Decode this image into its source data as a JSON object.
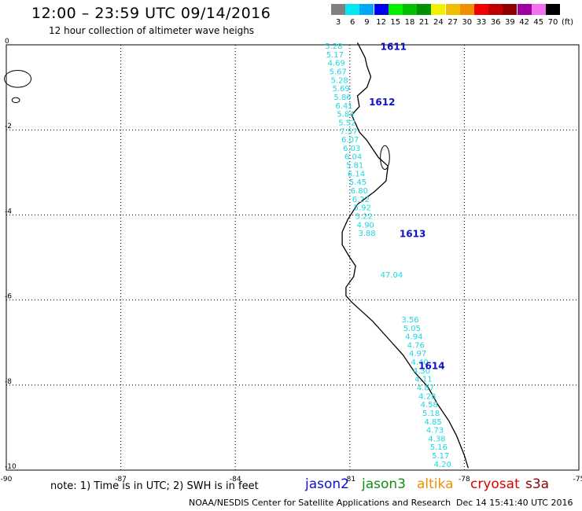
{
  "header": {
    "title": "12:00 – 23:59 UTC 09/14/2016",
    "subtitle": "12 hour collection of altimeter wave heighs"
  },
  "legend": {
    "unit": "(ft)",
    "bins": [
      {
        "label": "3",
        "color": "#808080"
      },
      {
        "label": "6",
        "color": "#00e8f0"
      },
      {
        "label": "9",
        "color": "#00a8f8"
      },
      {
        "label": "12",
        "color": "#0000f0"
      },
      {
        "label": "15",
        "color": "#00f000"
      },
      {
        "label": "18",
        "color": "#00c000"
      },
      {
        "label": "21",
        "color": "#009000"
      },
      {
        "label": "24",
        "color": "#f0f000"
      },
      {
        "label": "27",
        "color": "#f0c000"
      },
      {
        "label": "30",
        "color": "#f09000"
      },
      {
        "label": "33",
        "color": "#f00000"
      },
      {
        "label": "36",
        "color": "#c00000"
      },
      {
        "label": "39",
        "color": "#900000"
      },
      {
        "label": "42",
        "color": "#a000a0"
      },
      {
        "label": "45",
        "color": "#f070f0"
      },
      {
        "label": "70",
        "color": "#000000"
      }
    ]
  },
  "map": {
    "lon_range": [
      -90,
      -75
    ],
    "lat_range": [
      -10,
      0
    ],
    "x_ticks": [
      {
        "value": -90,
        "label": "-90"
      },
      {
        "value": -87,
        "label": "-87"
      },
      {
        "value": -84,
        "label": "-84"
      },
      {
        "value": -81,
        "label": "-81"
      },
      {
        "value": -78,
        "label": "-78"
      },
      {
        "value": -75,
        "label": "-75"
      }
    ],
    "y_ticks": [
      {
        "value": 0,
        "label": "0"
      },
      {
        "value": -2,
        "label": "-2"
      },
      {
        "value": -4,
        "label": "-4"
      },
      {
        "value": -6,
        "label": "-6"
      },
      {
        "value": -8,
        "label": "-8"
      },
      {
        "value": -10,
        "label": "-10"
      }
    ],
    "grid": true,
    "coastline": [
      [
        -80.8,
        0.05
      ],
      [
        -80.6,
        -0.3
      ],
      [
        -80.55,
        -0.5
      ],
      [
        -80.45,
        -0.75
      ],
      [
        -80.55,
        -1.0
      ],
      [
        -80.8,
        -1.2
      ],
      [
        -80.75,
        -1.45
      ],
      [
        -80.95,
        -1.65
      ],
      [
        -80.75,
        -2.05
      ],
      [
        -80.55,
        -2.25
      ],
      [
        -80.25,
        -2.65
      ],
      [
        -80.0,
        -2.85
      ],
      [
        -80.05,
        -3.2
      ],
      [
        -80.35,
        -3.45
      ],
      [
        -80.8,
        -3.75
      ],
      [
        -81.05,
        -4.1
      ],
      [
        -81.2,
        -4.4
      ],
      [
        -81.2,
        -4.7
      ],
      [
        -81.0,
        -5.0
      ],
      [
        -80.85,
        -5.2
      ],
      [
        -80.9,
        -5.45
      ],
      [
        -81.1,
        -5.7
      ],
      [
        -81.1,
        -5.9
      ],
      [
        -80.95,
        -6.05
      ],
      [
        -80.4,
        -6.5
      ],
      [
        -79.95,
        -6.95
      ],
      [
        -79.6,
        -7.3
      ],
      [
        -79.3,
        -7.7
      ],
      [
        -78.95,
        -8.05
      ],
      [
        -78.7,
        -8.45
      ],
      [
        -78.4,
        -8.85
      ],
      [
        -78.2,
        -9.2
      ],
      [
        -78.0,
        -9.65
      ],
      [
        -77.9,
        -9.95
      ]
    ],
    "islands": [
      {
        "center": [
          -89.7,
          -0.8
        ],
        "rx": 0.35,
        "ry": 0.2
      },
      {
        "center": [
          -89.75,
          -1.3
        ],
        "rx": 0.1,
        "ry": 0.06
      },
      {
        "center": [
          -80.08,
          -2.65
        ],
        "rx": 0.12,
        "ry": 0.28
      }
    ]
  },
  "passes": [
    {
      "label": "1611",
      "lon": -80.2,
      "lat": -0.05
    },
    {
      "label": "1612",
      "lon": -80.5,
      "lat": -1.35
    },
    {
      "label": "1613",
      "lon": -79.7,
      "lat": -4.45
    },
    {
      "label": "1614",
      "lon": -79.2,
      "lat": -7.55
    }
  ],
  "wave_heights": [
    {
      "lon": -81.65,
      "lat": -0.02,
      "value": "5.28"
    },
    {
      "lon": -81.62,
      "lat": -0.22,
      "value": "5.17"
    },
    {
      "lon": -81.58,
      "lat": -0.42,
      "value": "4.69"
    },
    {
      "lon": -81.54,
      "lat": -0.62,
      "value": "5.67"
    },
    {
      "lon": -81.5,
      "lat": -0.82,
      "value": "5.28"
    },
    {
      "lon": -81.46,
      "lat": -1.02,
      "value": "5.69"
    },
    {
      "lon": -81.42,
      "lat": -1.22,
      "value": "5.86"
    },
    {
      "lon": -81.38,
      "lat": -1.42,
      "value": "6.41"
    },
    {
      "lon": -81.34,
      "lat": -1.62,
      "value": "5.84"
    },
    {
      "lon": -81.3,
      "lat": -1.82,
      "value": "5.52"
    },
    {
      "lon": -81.26,
      "lat": -2.02,
      "value": "7.57"
    },
    {
      "lon": -81.22,
      "lat": -2.22,
      "value": "6.07"
    },
    {
      "lon": -81.18,
      "lat": -2.42,
      "value": "6.03"
    },
    {
      "lon": -81.14,
      "lat": -2.62,
      "value": "6.04"
    },
    {
      "lon": -81.1,
      "lat": -2.82,
      "value": "5.81"
    },
    {
      "lon": -81.06,
      "lat": -3.02,
      "value": "6.14"
    },
    {
      "lon": -81.02,
      "lat": -3.22,
      "value": "5.45"
    },
    {
      "lon": -80.98,
      "lat": -3.42,
      "value": "6.80"
    },
    {
      "lon": -80.94,
      "lat": -3.62,
      "value": "6.22"
    },
    {
      "lon": -80.9,
      "lat": -3.82,
      "value": "5.92"
    },
    {
      "lon": -80.86,
      "lat": -4.02,
      "value": "5.22"
    },
    {
      "lon": -80.82,
      "lat": -4.22,
      "value": "4.90"
    },
    {
      "lon": -80.78,
      "lat": -4.42,
      "value": "3.88"
    },
    {
      "lon": -80.2,
      "lat": -5.4,
      "value": "47.04",
      "color": "#f0a0e0"
    },
    {
      "lon": -79.65,
      "lat": -6.45,
      "value": "3.56"
    },
    {
      "lon": -79.6,
      "lat": -6.65,
      "value": "5.05"
    },
    {
      "lon": -79.55,
      "lat": -6.85,
      "value": "4.94"
    },
    {
      "lon": -79.5,
      "lat": -7.05,
      "value": "4.76"
    },
    {
      "lon": -79.45,
      "lat": -7.25,
      "value": "4.97"
    },
    {
      "lon": -79.4,
      "lat": -7.45,
      "value": "4.40"
    },
    {
      "lon": -79.35,
      "lat": -7.65,
      "value": "4.30"
    },
    {
      "lon": -79.3,
      "lat": -7.85,
      "value": "4.11"
    },
    {
      "lon": -79.25,
      "lat": -8.05,
      "value": "4.87"
    },
    {
      "lon": -79.2,
      "lat": -8.25,
      "value": "4.28"
    },
    {
      "lon": -79.15,
      "lat": -8.45,
      "value": "4.58"
    },
    {
      "lon": -79.1,
      "lat": -8.65,
      "value": "5.18"
    },
    {
      "lon": -79.05,
      "lat": -8.85,
      "value": "4.85"
    },
    {
      "lon": -79.0,
      "lat": -9.05,
      "value": "4.73"
    },
    {
      "lon": -78.95,
      "lat": -9.25,
      "value": "4.38"
    },
    {
      "lon": -78.9,
      "lat": -9.45,
      "value": "5.16"
    },
    {
      "lon": -78.85,
      "lat": -9.65,
      "value": "5.17"
    },
    {
      "lon": -78.8,
      "lat": -9.85,
      "value": "4.20"
    }
  ],
  "footer": {
    "note": "note: 1) Time is in UTC; 2) SWH is in feet",
    "satellites": [
      {
        "name": "jason2",
        "color": "#1010d0"
      },
      {
        "name": "jason3",
        "color": "#109010"
      },
      {
        "name": "altika",
        "color": "#f09000"
      },
      {
        "name": "cryosat",
        "color": "#e00000"
      },
      {
        "name": "s3a",
        "color": "#900000"
      }
    ],
    "credit": "NOAA/NESDIS Center for Satellite Applications and Research",
    "timestamp": "Dec 14 15:41:40 UTC 2016"
  }
}
